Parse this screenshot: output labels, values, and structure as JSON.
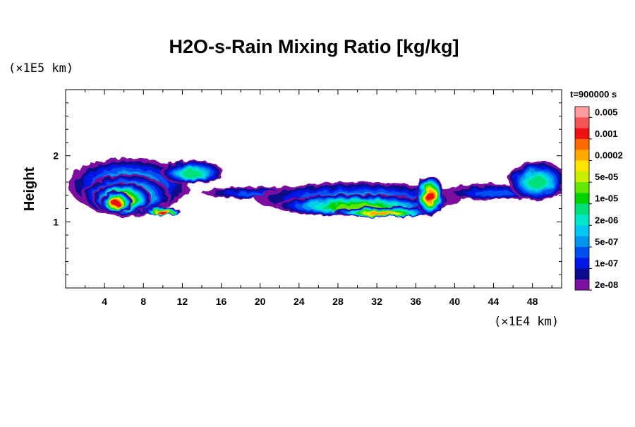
{
  "chart_data": {
    "type": "heatmap",
    "title": "H2O-s-Rain Mixing Ratio [kg/kg]",
    "ylabel": "Height",
    "xlabel": "",
    "x_unit": "(×1E4 km)",
    "y_unit": "(×1E5 km)",
    "time_label": "t=900000 s",
    "xlim": [
      0,
      51
    ],
    "ylim": [
      0,
      3
    ],
    "x_ticks": [
      4,
      8,
      12,
      16,
      20,
      24,
      28,
      32,
      36,
      40,
      44,
      48
    ],
    "y_ticks": [
      1,
      2
    ],
    "x_minor_step": 2,
    "y_minor_step": 0.2,
    "colorbar": {
      "levels": [
        "0.005",
        "0.001",
        "0.0002",
        "5e-05",
        "1e-05",
        "2e-06",
        "5e-07",
        "1e-07",
        "2e-08"
      ],
      "colors": [
        "#ff9b9b",
        "#f55454",
        "#ee1111",
        "#ff6a00",
        "#ffa800",
        "#ffe400",
        "#c8f000",
        "#62e800",
        "#00d200",
        "#00e07a",
        "#00e8c8",
        "#00c8f0",
        "#0096f0",
        "#0050f0",
        "#0018e6",
        "#0a0a8c",
        "#7c10a0"
      ]
    },
    "features": [
      {
        "x": 6.5,
        "y": 1.55,
        "rx": 6.2,
        "ry": 0.42,
        "level": 6
      },
      {
        "x": 6.2,
        "y": 1.4,
        "rx": 4.5,
        "ry": 0.32,
        "level": 9
      },
      {
        "x": 5.8,
        "y": 1.35,
        "rx": 3.0,
        "ry": 0.25,
        "level": 12
      },
      {
        "x": 5.2,
        "y": 1.3,
        "rx": 1.6,
        "ry": 0.16,
        "level": 14
      },
      {
        "x": 10.0,
        "y": 1.16,
        "rx": 1.8,
        "ry": 0.06,
        "level": 14
      },
      {
        "x": 13.0,
        "y": 1.75,
        "rx": 3.2,
        "ry": 0.18,
        "level": 7
      },
      {
        "x": 20.0,
        "y": 1.44,
        "rx": 6.0,
        "ry": 0.09,
        "level": 3
      },
      {
        "x": 30.0,
        "y": 1.35,
        "rx": 10.5,
        "ry": 0.25,
        "level": 5
      },
      {
        "x": 30.0,
        "y": 1.25,
        "rx": 8.5,
        "ry": 0.17,
        "level": 9
      },
      {
        "x": 32.5,
        "y": 1.15,
        "rx": 5.0,
        "ry": 0.08,
        "level": 12
      },
      {
        "x": 37.5,
        "y": 1.4,
        "rx": 1.4,
        "ry": 0.3,
        "level": 14
      },
      {
        "x": 44.0,
        "y": 1.45,
        "rx": 5.0,
        "ry": 0.12,
        "level": 3
      },
      {
        "x": 48.5,
        "y": 1.62,
        "rx": 3.0,
        "ry": 0.3,
        "level": 7
      }
    ]
  }
}
